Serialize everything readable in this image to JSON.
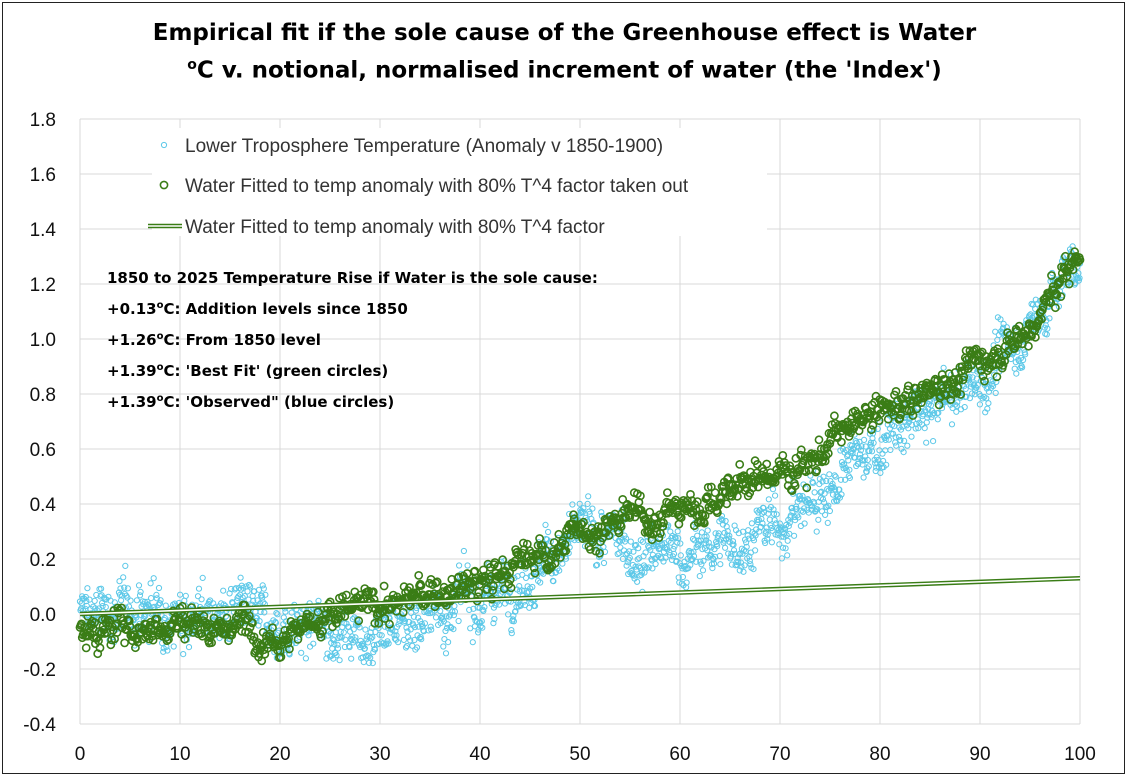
{
  "chart_data": {
    "type": "scatter",
    "title": "Empirical fit if the sole cause of the Greenhouse effect is Water",
    "subtitle_parts": {
      "unit": "C",
      "rest": " v. notional, normalised increment of water (the 'Index')"
    },
    "subtitle_sup": "o",
    "xlabel": "",
    "ylabel": "",
    "xlim": [
      0,
      100
    ],
    "ylim": [
      -0.4,
      1.8
    ],
    "x_ticks": [
      "0",
      "10",
      "20",
      "30",
      "40",
      "50",
      "60",
      "70",
      "80",
      "90",
      "100"
    ],
    "y_ticks": [
      "-0.4",
      "-0.2",
      "0.0",
      "0.2",
      "0.4",
      "0.6",
      "0.8",
      "1.0",
      "1.2",
      "1.4",
      "1.6",
      "1.8"
    ],
    "grid": true,
    "legend_position": "top-left",
    "colors": {
      "observed": "#5cc8e8",
      "fitted": "#3a7d16",
      "line_fill": "#ffffff",
      "grid": "#d9d9d9"
    },
    "series": [
      {
        "name": "Lower Troposphere Temperature (Anomaly v 1850-1900)",
        "marker": "circle-small",
        "color": "#5cc8e8",
        "trend_knots": [
          [
            0,
            0.0
          ],
          [
            10,
            0.02
          ],
          [
            20,
            -0.05
          ],
          [
            30,
            -0.05
          ],
          [
            40,
            0.05
          ],
          [
            50,
            0.28
          ],
          [
            60,
            0.2
          ],
          [
            70,
            0.32
          ],
          [
            80,
            0.62
          ],
          [
            90,
            0.85
          ],
          [
            95,
            1.05
          ],
          [
            100,
            1.3
          ]
        ],
        "spread": 0.16,
        "n_points": 1900
      },
      {
        "name": "Water Fitted to temp anomaly with 80% T^4 factor taken out",
        "marker": "circle",
        "color": "#3a7d16",
        "trend_knots": [
          [
            0,
            -0.08
          ],
          [
            10,
            -0.02
          ],
          [
            20,
            -0.05
          ],
          [
            30,
            0.03
          ],
          [
            40,
            0.1
          ],
          [
            50,
            0.3
          ],
          [
            60,
            0.38
          ],
          [
            70,
            0.52
          ],
          [
            80,
            0.72
          ],
          [
            90,
            0.92
          ],
          [
            95,
            1.05
          ],
          [
            100,
            1.3
          ]
        ],
        "spread": 0.09,
        "n_points": 1300
      },
      {
        "name": "Water Fitted to temp anomaly with 80% T^4 factor",
        "marker": "line",
        "color": "#3a7d16",
        "x": [
          0,
          100
        ],
        "y": [
          0.0,
          0.13
        ]
      }
    ],
    "annotations": {
      "heading": "1850 to 2025 Temperature Rise if Water is the sole cause:",
      "sup": "o",
      "lines": [
        {
          "value": "+0.13",
          "text": "C: Addition levels since 1850"
        },
        {
          "value": "+1.26",
          "text": "C: From 1850 level"
        },
        {
          "value": "+1.39",
          "text": "C: 'Best Fit' (green circles)"
        },
        {
          "value": "+1.39",
          "text": "C: 'Observed\" (blue circles)"
        }
      ]
    }
  }
}
